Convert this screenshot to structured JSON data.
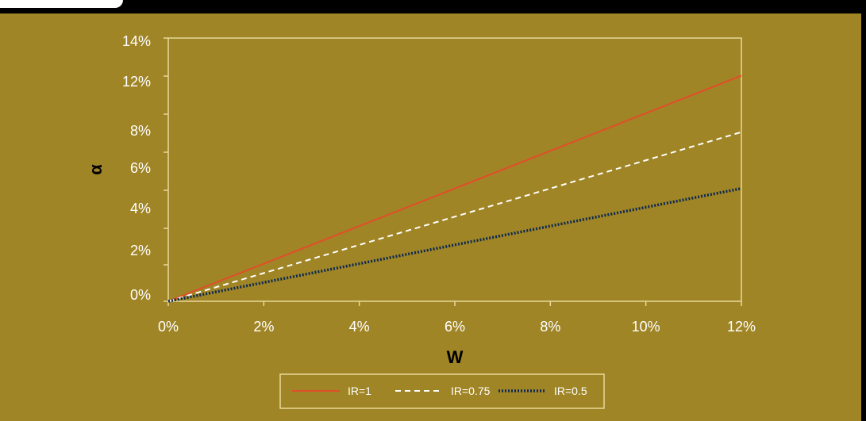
{
  "chart_data": {
    "type": "line",
    "xlabel": "W",
    "ylabel": "α",
    "x_ticks": [
      "0%",
      "2%",
      "4%",
      "6%",
      "8%",
      "10%",
      "12%"
    ],
    "y_ticks": [
      "0%",
      "2%",
      "4%",
      "6%",
      "8%",
      "",
      "12%",
      "14%"
    ],
    "xlim": [
      0,
      12
    ],
    "ylim": [
      0,
      14
    ],
    "grid": false,
    "legend_position": "bottom",
    "series": [
      {
        "name": "IR=1",
        "style": "solid",
        "color": "#e04e2a",
        "points": [
          [
            0,
            0
          ],
          [
            12,
            12
          ]
        ]
      },
      {
        "name": "IR=0.75",
        "style": "dashed",
        "color": "#ffffff",
        "points": [
          [
            0,
            0
          ],
          [
            12,
            9
          ]
        ]
      },
      {
        "name": "IR=0.5",
        "style": "dotted",
        "color": "#0d2a52",
        "points": [
          [
            0,
            0
          ],
          [
            12,
            6
          ]
        ]
      }
    ]
  },
  "colors": {
    "background": "#a08526",
    "plot_border": "#e8d99a",
    "tick_text": "#ffffff",
    "axis_title": "#000000"
  }
}
